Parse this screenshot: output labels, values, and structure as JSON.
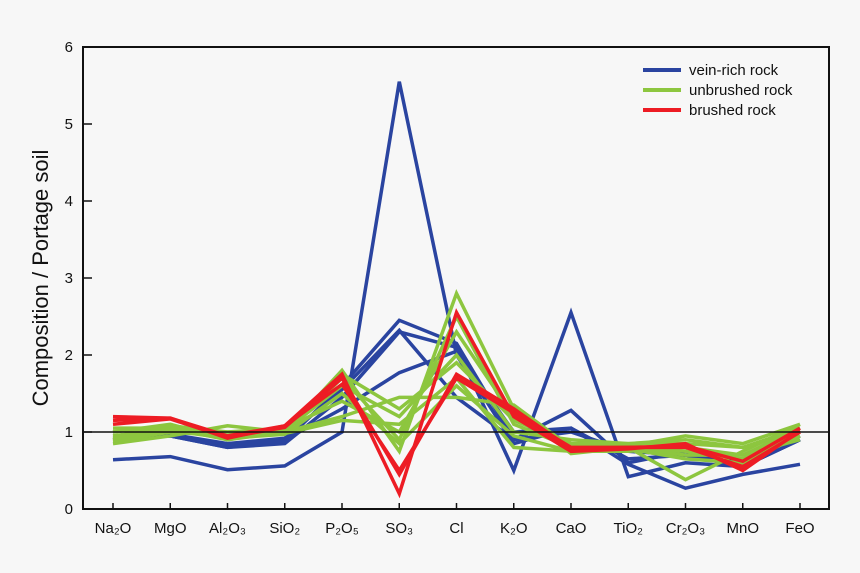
{
  "chart_data": {
    "type": "line",
    "title": "",
    "xlabel": "",
    "ylabel": "Composition / Portage soil",
    "ylim": [
      0,
      6
    ],
    "yticks": [
      "0",
      "1",
      "2",
      "3",
      "4",
      "5",
      "6"
    ],
    "reference_line": 1,
    "grid": false,
    "legend_position": "top-right",
    "categories": [
      "Na₂O",
      "MgO",
      "Al₂O₃",
      "SiO₂",
      "P₂O₅",
      "SO₃",
      "Cl",
      "K₂O",
      "CaO",
      "TiO₂",
      "Cr₂O₃",
      "MnO",
      "FeO"
    ],
    "groups": [
      {
        "name": "vein-rich rock",
        "color": "#2a44a0",
        "series": [
          [
            0.64,
            0.68,
            0.51,
            0.56,
            1.0,
            5.55,
            2.0,
            0.85,
            1.05,
            0.58,
            0.27,
            0.45,
            0.58
          ],
          [
            0.9,
            0.95,
            0.8,
            0.85,
            1.45,
            2.3,
            2.1,
            0.5,
            2.55,
            0.42,
            0.6,
            0.55,
            0.9
          ],
          [
            0.9,
            0.95,
            0.8,
            0.88,
            1.6,
            2.45,
            2.15,
            0.9,
            1.28,
            0.6,
            0.75,
            0.55,
            0.9
          ],
          [
            0.92,
            0.95,
            0.82,
            0.9,
            1.3,
            1.77,
            2.05,
            1.0,
            1.05,
            0.65,
            0.7,
            0.55,
            0.9
          ],
          [
            0.95,
            0.97,
            0.85,
            0.92,
            1.55,
            2.32,
            1.45,
            0.9,
            1.0,
            0.75,
            0.7,
            0.6,
            0.95
          ]
        ]
      },
      {
        "name": "unbrushed rock",
        "color": "#8dc63f",
        "series": [
          [
            0.85,
            0.95,
            1.08,
            1.0,
            1.8,
            0.75,
            2.8,
            1.3,
            0.72,
            0.8,
            0.38,
            0.75,
            1.1
          ],
          [
            0.9,
            1.0,
            1.0,
            1.0,
            1.2,
            1.45,
            1.45,
            1.35,
            0.8,
            0.82,
            0.95,
            0.85,
            1.1
          ],
          [
            0.95,
            1.05,
            0.95,
            1.05,
            1.4,
            1.0,
            2.3,
            1.2,
            0.85,
            0.8,
            0.7,
            0.7,
            1.05
          ],
          [
            1.0,
            1.1,
            0.9,
            1.02,
            1.6,
            1.2,
            2.0,
            1.0,
            0.9,
            0.85,
            0.85,
            0.8,
            1.0
          ],
          [
            1.05,
            1.05,
            0.9,
            1.0,
            1.7,
            0.9,
            2.5,
            1.1,
            0.8,
            0.78,
            0.65,
            0.6,
            0.95
          ],
          [
            0.88,
            1.0,
            0.95,
            0.98,
            1.15,
            1.1,
            1.7,
            0.8,
            0.75,
            0.75,
            0.8,
            0.7,
            0.9
          ],
          [
            1.0,
            1.08,
            1.0,
            1.05,
            1.75,
            1.3,
            1.9,
            1.15,
            0.85,
            0.85,
            0.9,
            0.8,
            1.05
          ],
          [
            0.92,
            1.02,
            0.92,
            0.97,
            1.5,
            0.85,
            1.6,
            0.95,
            0.75,
            0.8,
            0.75,
            0.65,
            1.0
          ]
        ]
      },
      {
        "name": "brushed rock",
        "color": "#ed1c24",
        "series": [
          [
            1.2,
            1.18,
            0.92,
            1.08,
            1.75,
            0.2,
            2.55,
            1.2,
            0.75,
            0.78,
            0.85,
            0.5,
            1.02
          ],
          [
            1.15,
            1.18,
            0.95,
            1.08,
            1.62,
            0.5,
            1.7,
            1.25,
            0.8,
            0.8,
            0.82,
            0.62,
            1.05
          ],
          [
            1.1,
            1.17,
            0.93,
            1.06,
            1.7,
            0.45,
            1.75,
            1.3,
            0.78,
            0.8,
            0.8,
            0.55,
            1.0
          ]
        ]
      }
    ]
  }
}
